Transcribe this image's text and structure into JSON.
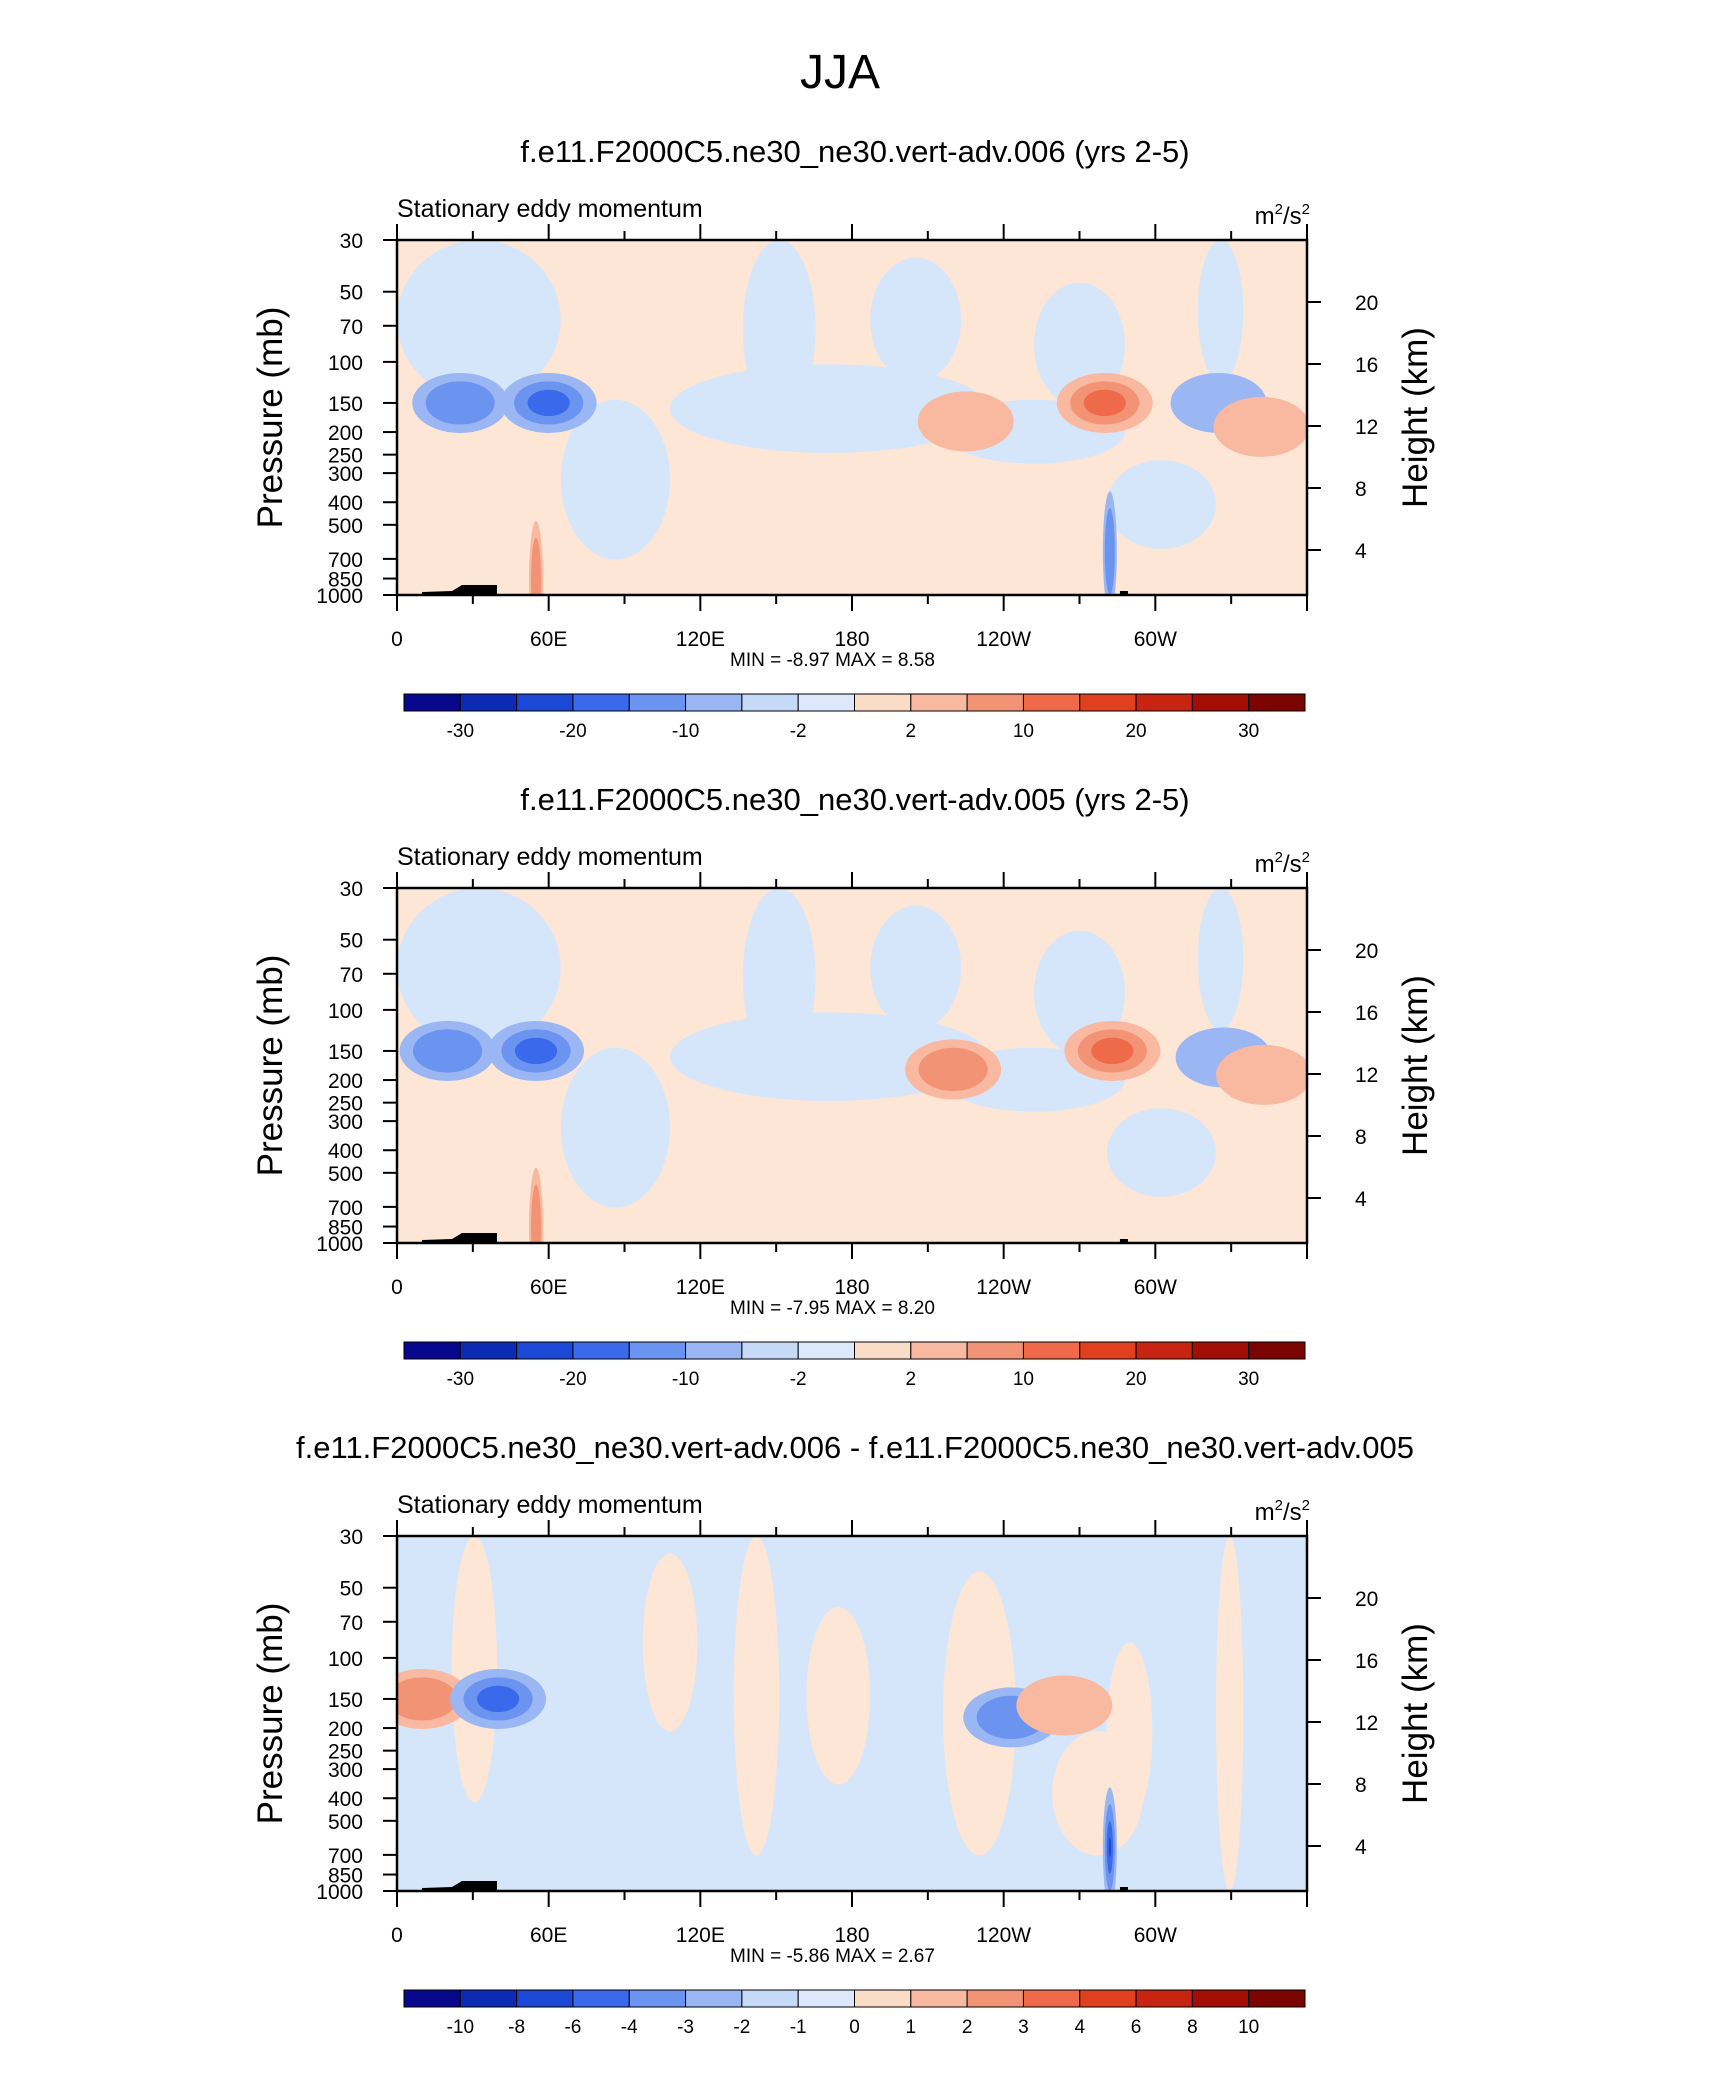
{
  "title": "JJA",
  "panel_subtitle": "Stationary eddy momentum",
  "units": {
    "base": "m",
    "exp1": "2",
    "mid": "/s",
    "exp2": "2"
  },
  "colors": {
    "blues": [
      "#08088c",
      "#0c2bb4",
      "#1b48d6",
      "#3a69ec",
      "#6b93f0",
      "#9ab6f3",
      "#c6d9f7",
      "#dde9fa"
    ],
    "light_blue": "#d6e6fa",
    "light_orange": "#fde6d6",
    "reds": [
      "#fbdcc7",
      "#f8b9a0",
      "#f39376",
      "#ee6a49",
      "#e1401f",
      "#c72511",
      "#a20d06",
      "#7a0400"
    ]
  },
  "chart_data": [
    {
      "type": "heatmap",
      "title": "f.e11.F2000C5.ne30_ne30.vert-adv.006 (yrs 2-5)",
      "subtitle": "Stationary eddy momentum",
      "units": "m2/s2",
      "xlabel": "",
      "ylabel": "Pressure (mb)",
      "ylabel_right": "Height (km)",
      "x_ticks": [
        "0",
        "60E",
        "120E",
        "180",
        "120W",
        "60W"
      ],
      "y_ticks": [
        "30",
        "50",
        "70",
        "100",
        "150",
        "200",
        "250",
        "300",
        "400",
        "500",
        "700",
        "850",
        "1000"
      ],
      "y_right_ticks": [
        "20",
        "16",
        "12",
        "8",
        "4"
      ],
      "y_scale": "log",
      "stats": {
        "min_label": "MIN = ",
        "min": "-8.97",
        "max_label": "MAX = ",
        "max": "8.58"
      },
      "colorbar_labels": [
        "-30",
        "-20",
        "-10",
        "-2",
        "2",
        "10",
        "20",
        "30"
      ],
      "features": [
        {
          "lon": 25,
          "p": 150,
          "value": -5
        },
        {
          "lon": 60,
          "p": 150,
          "value": -9
        },
        {
          "lon": 55,
          "p": 870,
          "value": 5
        },
        {
          "lon": 225,
          "p": 180,
          "value": 3
        },
        {
          "lon": 280,
          "p": 150,
          "value": 7
        },
        {
          "lon": 325,
          "p": 150,
          "value": -3
        },
        {
          "lon": 342,
          "p": 190,
          "value": 3
        },
        {
          "lon": 282,
          "p": 650,
          "value": -4
        }
      ]
    },
    {
      "type": "heatmap",
      "title": "f.e11.F2000C5.ne30_ne30.vert-adv.005 (yrs 2-5)",
      "subtitle": "Stationary eddy momentum",
      "units": "m2/s2",
      "xlabel": "",
      "ylabel": "Pressure (mb)",
      "ylabel_right": "Height (km)",
      "x_ticks": [
        "0",
        "60E",
        "120E",
        "180",
        "120W",
        "60W"
      ],
      "y_ticks": [
        "30",
        "50",
        "70",
        "100",
        "150",
        "200",
        "250",
        "300",
        "400",
        "500",
        "700",
        "850",
        "1000"
      ],
      "y_right_ticks": [
        "20",
        "16",
        "12",
        "8",
        "4"
      ],
      "y_scale": "log",
      "stats": {
        "min_label": "MIN = ",
        "min": "-7.95",
        "max_label": "MAX = ",
        "max": "8.20"
      },
      "colorbar_labels": [
        "-30",
        "-20",
        "-10",
        "-2",
        "2",
        "10",
        "20",
        "30"
      ],
      "features": [
        {
          "lon": 20,
          "p": 150,
          "value": -4
        },
        {
          "lon": 55,
          "p": 150,
          "value": -8
        },
        {
          "lon": 55,
          "p": 860,
          "value": 5
        },
        {
          "lon": 220,
          "p": 180,
          "value": 4
        },
        {
          "lon": 283,
          "p": 150,
          "value": 7
        },
        {
          "lon": 327,
          "p": 160,
          "value": -3
        },
        {
          "lon": 343,
          "p": 190,
          "value": 3
        }
      ]
    },
    {
      "type": "heatmap",
      "title": "f.e11.F2000C5.ne30_ne30.vert-adv.006 - f.e11.F2000C5.ne30_ne30.vert-adv.005",
      "subtitle": "Stationary eddy momentum",
      "units": "m2/s2",
      "xlabel": "",
      "ylabel": "Pressure (mb)",
      "ylabel_right": "Height (km)",
      "x_ticks": [
        "0",
        "60E",
        "120E",
        "180",
        "120W",
        "60W"
      ],
      "y_ticks": [
        "30",
        "50",
        "70",
        "100",
        "150",
        "200",
        "250",
        "300",
        "400",
        "500",
        "700",
        "850",
        "1000"
      ],
      "y_right_ticks": [
        "20",
        "16",
        "12",
        "8",
        "4"
      ],
      "y_scale": "log",
      "stats": {
        "min_label": "MIN = ",
        "min": "-5.86",
        "max_label": "MAX = ",
        "max": "2.67"
      },
      "colorbar_labels": [
        "-10",
        "-8",
        "-6",
        "-4",
        "-3",
        "-2",
        "-1",
        "0",
        "1",
        "2",
        "3",
        "4",
        "6",
        "8",
        "10"
      ],
      "features": [
        {
          "lon": 10,
          "p": 150,
          "value": 2
        },
        {
          "lon": 40,
          "p": 150,
          "value": -3
        },
        {
          "lon": 243,
          "p": 180,
          "value": -2
        },
        {
          "lon": 264,
          "p": 160,
          "value": 1
        },
        {
          "lon": 282,
          "p": 650,
          "value": -6
        }
      ]
    }
  ]
}
